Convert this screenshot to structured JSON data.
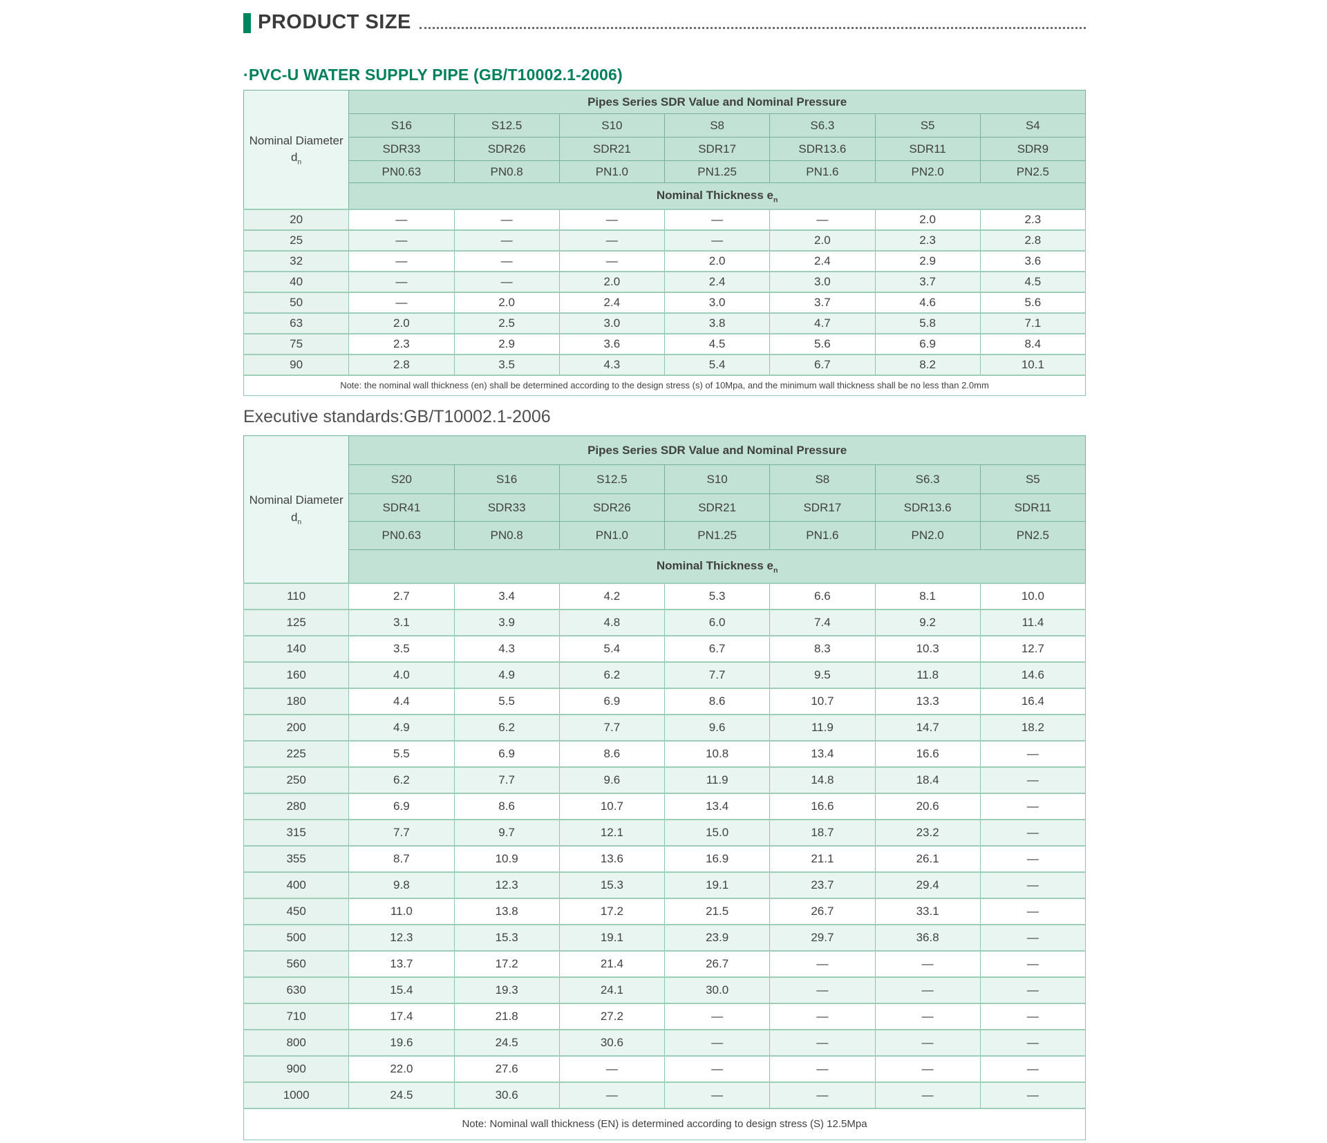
{
  "page": {
    "title": "PRODUCT SIZE",
    "subtitle": "·PVC-U WATER SUPPLY PIPE (GB/T10002.1-2006)",
    "executive_standards": "Executive standards:GB/T10002.1-2006",
    "accent_color": "#00855c"
  },
  "tables": [
    {
      "name": "pvc-u-pipe-size-table-small-diameters",
      "corner": {
        "line1": "Nominal Diameter",
        "symbol": "d",
        "sub": "n"
      },
      "span_header": "Pipes Series SDR Value and Nominal Pressure",
      "series_row": [
        "S16",
        "S12.5",
        "S10",
        "S8",
        "S6.3",
        "S5",
        "S4"
      ],
      "sdr_row": [
        "SDR33",
        "SDR26",
        "SDR21",
        "SDR17",
        "SDR13.6",
        "SDR11",
        "SDR9"
      ],
      "pn_row": [
        "PN0.63",
        "PN0.8",
        "PN1.0",
        "PN1.25",
        "PN1.6",
        "PN2.0",
        "PN2.5"
      ],
      "thickness_header": {
        "text": "Nominal Thickness e",
        "sub": "n"
      },
      "rows": [
        {
          "dn": "20",
          "values": [
            "—",
            "—",
            "—",
            "—",
            "—",
            "2.0",
            "2.3"
          ]
        },
        {
          "dn": "25",
          "values": [
            "—",
            "—",
            "—",
            "—",
            "2.0",
            "2.3",
            "2.8"
          ]
        },
        {
          "dn": "32",
          "values": [
            "—",
            "—",
            "—",
            "2.0",
            "2.4",
            "2.9",
            "3.6"
          ]
        },
        {
          "dn": "40",
          "values": [
            "—",
            "—",
            "2.0",
            "2.4",
            "3.0",
            "3.7",
            "4.5"
          ]
        },
        {
          "dn": "50",
          "values": [
            "—",
            "2.0",
            "2.4",
            "3.0",
            "3.7",
            "4.6",
            "5.6"
          ]
        },
        {
          "dn": "63",
          "values": [
            "2.0",
            "2.5",
            "3.0",
            "3.8",
            "4.7",
            "5.8",
            "7.1"
          ]
        },
        {
          "dn": "75",
          "values": [
            "2.3",
            "2.9",
            "3.6",
            "4.5",
            "5.6",
            "6.9",
            "8.4"
          ]
        },
        {
          "dn": "90",
          "values": [
            "2.8",
            "3.5",
            "4.3",
            "5.4",
            "6.7",
            "8.2",
            "10.1"
          ]
        }
      ],
      "note": "Note: the nominal wall thickness (en) shall be determined according to the design stress (s) of 10Mpa, and the minimum wall thickness shall be no less than 2.0mm"
    },
    {
      "name": "pvc-u-pipe-size-table-large-diameters",
      "corner": {
        "line1": "Nominal Diameter",
        "symbol": "d",
        "sub": "n"
      },
      "span_header": "Pipes Series SDR Value and Nominal Pressure",
      "series_row": [
        "S20",
        "S16",
        "S12.5",
        "S10",
        "S8",
        "S6.3",
        "S5"
      ],
      "sdr_row": [
        "SDR41",
        "SDR33",
        "SDR26",
        "SDR21",
        "SDR17",
        "SDR13.6",
        "SDR11"
      ],
      "pn_row": [
        "PN0.63",
        "PN0.8",
        "PN1.0",
        "PN1.25",
        "PN1.6",
        "PN2.0",
        "PN2.5"
      ],
      "thickness_header": {
        "text": "Nominal Thickness e",
        "sub": "n"
      },
      "rows": [
        {
          "dn": "110",
          "values": [
            "2.7",
            "3.4",
            "4.2",
            "5.3",
            "6.6",
            "8.1",
            "10.0"
          ]
        },
        {
          "dn": "125",
          "values": [
            "3.1",
            "3.9",
            "4.8",
            "6.0",
            "7.4",
            "9.2",
            "11.4"
          ]
        },
        {
          "dn": "140",
          "values": [
            "3.5",
            "4.3",
            "5.4",
            "6.7",
            "8.3",
            "10.3",
            "12.7"
          ]
        },
        {
          "dn": "160",
          "values": [
            "4.0",
            "4.9",
            "6.2",
            "7.7",
            "9.5",
            "11.8",
            "14.6"
          ]
        },
        {
          "dn": "180",
          "values": [
            "4.4",
            "5.5",
            "6.9",
            "8.6",
            "10.7",
            "13.3",
            "16.4"
          ]
        },
        {
          "dn": "200",
          "values": [
            "4.9",
            "6.2",
            "7.7",
            "9.6",
            "11.9",
            "14.7",
            "18.2"
          ]
        },
        {
          "dn": "225",
          "values": [
            "5.5",
            "6.9",
            "8.6",
            "10.8",
            "13.4",
            "16.6",
            "—"
          ]
        },
        {
          "dn": "250",
          "values": [
            "6.2",
            "7.7",
            "9.6",
            "11.9",
            "14.8",
            "18.4",
            "—"
          ]
        },
        {
          "dn": "280",
          "values": [
            "6.9",
            "8.6",
            "10.7",
            "13.4",
            "16.6",
            "20.6",
            "—"
          ]
        },
        {
          "dn": "315",
          "values": [
            "7.7",
            "9.7",
            "12.1",
            "15.0",
            "18.7",
            "23.2",
            "—"
          ]
        },
        {
          "dn": "355",
          "values": [
            "8.7",
            "10.9",
            "13.6",
            "16.9",
            "21.1",
            "26.1",
            "—"
          ]
        },
        {
          "dn": "400",
          "values": [
            "9.8",
            "12.3",
            "15.3",
            "19.1",
            "23.7",
            "29.4",
            "—"
          ]
        },
        {
          "dn": "450",
          "values": [
            "11.0",
            "13.8",
            "17.2",
            "21.5",
            "26.7",
            "33.1",
            "—"
          ]
        },
        {
          "dn": "500",
          "values": [
            "12.3",
            "15.3",
            "19.1",
            "23.9",
            "29.7",
            "36.8",
            "—"
          ]
        },
        {
          "dn": "560",
          "values": [
            "13.7",
            "17.2",
            "21.4",
            "26.7",
            "—",
            "—",
            "—"
          ]
        },
        {
          "dn": "630",
          "values": [
            "15.4",
            "19.3",
            "24.1",
            "30.0",
            "—",
            "—",
            "—"
          ]
        },
        {
          "dn": "710",
          "values": [
            "17.4",
            "21.8",
            "27.2",
            "—",
            "—",
            "—",
            "—"
          ]
        },
        {
          "dn": "800",
          "values": [
            "19.6",
            "24.5",
            "30.6",
            "—",
            "—",
            "—",
            "—"
          ]
        },
        {
          "dn": "900",
          "values": [
            "22.0",
            "27.6",
            "—",
            "—",
            "—",
            "—",
            "—"
          ]
        },
        {
          "dn": "1000",
          "values": [
            "24.5",
            "30.6",
            "—",
            "—",
            "—",
            "—",
            "—"
          ]
        }
      ],
      "note": "Note: Nominal wall thickness (EN) is determined according to design stress (S) 12.5Mpa"
    }
  ]
}
